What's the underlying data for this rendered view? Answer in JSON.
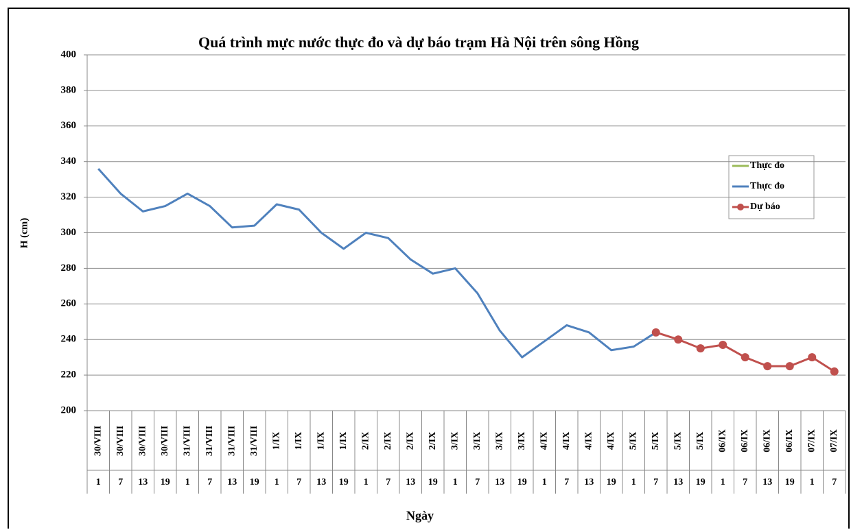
{
  "chart_data": {
    "type": "line",
    "title": "Quá trình mực nước thực đo và dự báo trạm Hà Nội trên sông Hồng",
    "y_label": "H (cm)",
    "x_label": "Ngày",
    "categories": [
      "30/VIII",
      "30/VIII",
      "30/VIII",
      "30/VIII",
      "31/VIII",
      "31/VIII",
      "31/VIII",
      "31/VIII",
      "1/IX",
      "1/IX",
      "1/IX",
      "1/IX",
      "2/IX",
      "2/IX",
      "2/IX",
      "2/IX",
      "3/IX",
      "3/IX",
      "3/IX",
      "3/IX",
      "4/IX",
      "4/IX",
      "4/IX",
      "4/IX",
      "5/IX",
      "5/IX",
      "5/IX",
      "5/IX",
      "06/IX",
      "06/IX",
      "06/IX",
      "06/IX",
      "07/IX",
      "07/IX"
    ],
    "hours": [
      "1",
      "7",
      "13",
      "19",
      "1",
      "7",
      "13",
      "19",
      "1",
      "7",
      "13",
      "19",
      "1",
      "7",
      "13",
      "19",
      "1",
      "7",
      "13",
      "19",
      "1",
      "7",
      "13",
      "19",
      "1",
      "7",
      "13",
      "19",
      "1",
      "7",
      "13",
      "19",
      "1",
      "7"
    ],
    "series": [
      {
        "name": "Thực đo",
        "color": "#9bbb59",
        "marker": false,
        "values": [
          null,
          null,
          null,
          null,
          null,
          null,
          null,
          null,
          null,
          null,
          null,
          null,
          null,
          null,
          null,
          null,
          null,
          null,
          null,
          null,
          null,
          null,
          null,
          null,
          null,
          null,
          null,
          null,
          null,
          null,
          null,
          null,
          null,
          null
        ]
      },
      {
        "name": "Thực đo",
        "color": "#4f81bd",
        "marker": false,
        "values": [
          336,
          322,
          312,
          315,
          322,
          315,
          303,
          304,
          316,
          313,
          300,
          291,
          300,
          297,
          285,
          277,
          280,
          266,
          245,
          230,
          239,
          248,
          244,
          234,
          236,
          244,
          null,
          null,
          null,
          null,
          null,
          null,
          null,
          null
        ]
      },
      {
        "name": "Dự báo",
        "color": "#c0504d",
        "marker": true,
        "values": [
          null,
          null,
          null,
          null,
          null,
          null,
          null,
          null,
          null,
          null,
          null,
          null,
          null,
          null,
          null,
          null,
          null,
          null,
          null,
          null,
          null,
          null,
          null,
          null,
          null,
          244,
          240,
          235,
          237,
          230,
          225,
          225,
          230,
          222
        ]
      }
    ],
    "ylim": [
      200,
      400
    ],
    "yticks": [
      200,
      220,
      240,
      260,
      280,
      300,
      320,
      340,
      360,
      380,
      400
    ],
    "grid": true,
    "legend": "right"
  }
}
